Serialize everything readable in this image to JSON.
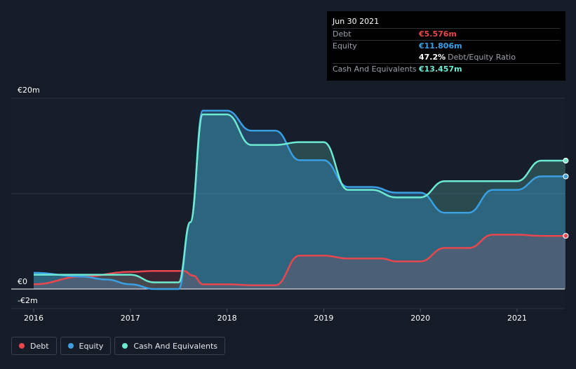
{
  "tooltip": {
    "date": "Jun 30 2021",
    "debt_label": "Debt",
    "debt_value": "€5.576m",
    "equity_label": "Equity",
    "equity_value": "€11.806m",
    "ratio_value": "47.2%",
    "ratio_label": "Debt/Equity Ratio",
    "cash_label": "Cash And Equivalents",
    "cash_value": "€13.457m"
  },
  "legend": {
    "debt": "Debt",
    "equity": "Equity",
    "cash": "Cash And Equivalents"
  },
  "colors": {
    "debt": "#e8474f",
    "equity": "#3a9fe3",
    "cash": "#6ee9d2",
    "background": "#151b27"
  },
  "chart_data": {
    "type": "area",
    "currency": "€",
    "y_unit": "m",
    "ylim": [
      -2,
      20
    ],
    "y_ticks": [
      {
        "value": 20,
        "label": "€20m"
      },
      {
        "value": 0,
        "label": "€0"
      },
      {
        "value": -2,
        "label": "-€2m"
      }
    ],
    "xlim": [
      2016.0,
      2021.5
    ],
    "x_ticks": [
      {
        "value": 2016,
        "label": "2016"
      },
      {
        "value": 2017,
        "label": "2017"
      },
      {
        "value": 2018,
        "label": "2018"
      },
      {
        "value": 2019,
        "label": "2019"
      },
      {
        "value": 2020,
        "label": "2020"
      },
      {
        "value": 2021,
        "label": "2021"
      }
    ],
    "series": [
      {
        "name": "Debt",
        "key": "debt",
        "points": [
          [
            2016.0,
            0.5
          ],
          [
            2016.5,
            1.3
          ],
          [
            2017.0,
            1.8
          ],
          [
            2017.25,
            1.9
          ],
          [
            2017.55,
            1.9
          ],
          [
            2017.65,
            1.4
          ],
          [
            2017.75,
            0.5
          ],
          [
            2018.0,
            0.5
          ],
          [
            2018.25,
            0.4
          ],
          [
            2018.5,
            0.4
          ],
          [
            2018.75,
            3.5
          ],
          [
            2019.0,
            3.5
          ],
          [
            2019.25,
            3.2
          ],
          [
            2019.6,
            3.2
          ],
          [
            2019.75,
            2.9
          ],
          [
            2020.0,
            2.9
          ],
          [
            2020.25,
            4.3
          ],
          [
            2020.5,
            4.3
          ],
          [
            2020.75,
            5.7
          ],
          [
            2021.0,
            5.7
          ],
          [
            2021.25,
            5.576
          ],
          [
            2021.5,
            5.576
          ]
        ]
      },
      {
        "name": "Equity",
        "key": "equity",
        "points": [
          [
            2016.0,
            1.7
          ],
          [
            2016.5,
            1.3
          ],
          [
            2016.75,
            1.0
          ],
          [
            2017.0,
            0.5
          ],
          [
            2017.25,
            0.0
          ],
          [
            2017.5,
            0.0
          ],
          [
            2017.62,
            7.0
          ],
          [
            2017.75,
            18.7
          ],
          [
            2018.0,
            18.7
          ],
          [
            2018.25,
            16.6
          ],
          [
            2018.5,
            16.6
          ],
          [
            2018.75,
            13.5
          ],
          [
            2019.0,
            13.5
          ],
          [
            2019.25,
            10.7
          ],
          [
            2019.5,
            10.7
          ],
          [
            2019.75,
            10.1
          ],
          [
            2020.0,
            10.1
          ],
          [
            2020.25,
            8.0
          ],
          [
            2020.5,
            8.0
          ],
          [
            2020.75,
            10.4
          ],
          [
            2021.0,
            10.4
          ],
          [
            2021.25,
            11.806
          ],
          [
            2021.5,
            11.806
          ]
        ]
      },
      {
        "name": "Cash And Equivalents",
        "key": "cash",
        "points": [
          [
            2016.0,
            1.5
          ],
          [
            2016.5,
            1.5
          ],
          [
            2016.75,
            1.5
          ],
          [
            2017.0,
            1.5
          ],
          [
            2017.25,
            0.7
          ],
          [
            2017.5,
            0.7
          ],
          [
            2017.62,
            7.0
          ],
          [
            2017.75,
            18.3
          ],
          [
            2018.0,
            18.3
          ],
          [
            2018.25,
            15.1
          ],
          [
            2018.5,
            15.1
          ],
          [
            2018.75,
            15.4
          ],
          [
            2019.0,
            15.4
          ],
          [
            2019.25,
            10.4
          ],
          [
            2019.5,
            10.4
          ],
          [
            2019.75,
            9.6
          ],
          [
            2020.0,
            9.6
          ],
          [
            2020.25,
            11.3
          ],
          [
            2020.5,
            11.3
          ],
          [
            2020.75,
            11.3
          ],
          [
            2021.0,
            11.3
          ],
          [
            2021.25,
            13.457
          ],
          [
            2021.5,
            13.457
          ]
        ]
      }
    ]
  }
}
